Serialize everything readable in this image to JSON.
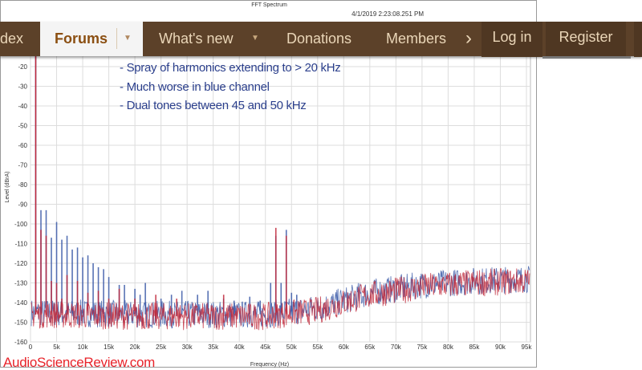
{
  "nav": {
    "items": [
      {
        "label": "dex"
      },
      {
        "label": "Forums"
      },
      {
        "label": "What's new"
      },
      {
        "label": "Donations"
      },
      {
        "label": "Members"
      }
    ],
    "more_icon": "chevron-right-icon",
    "dropdown_icon": "caret-down-icon",
    "login": "Log in",
    "register": "Register",
    "bg": "#5c4129",
    "active_color": "#8b4f12"
  },
  "post_image": {
    "title": "FFT Spectrum",
    "timestamp": "4/1/2019 2:23:08.251 PM",
    "notes": [
      "- Spray of harmonics extending to > 20 kHz",
      "- Much worse in blue channel",
      "- Dual tones between 45 and 50 kHz"
    ],
    "watermark": "AudioScienceReview.com"
  },
  "chart_data": {
    "type": "line",
    "title": "FFT Spectrum",
    "xlabel": "Frequency (Hz)",
    "ylabel": "Level (dBrA)",
    "xlim": [
      0,
      95000
    ],
    "ylim": [
      -160,
      -10
    ],
    "grid": true,
    "xticks": [
      "0",
      "5k",
      "10k",
      "15k",
      "20k",
      "25k",
      "30k",
      "35k",
      "40k",
      "45k",
      "50k",
      "55k",
      "60k",
      "65k",
      "70k",
      "75k",
      "80k",
      "85k",
      "90k",
      "95k"
    ],
    "yticks": [
      "-20",
      "-30",
      "-40",
      "-50",
      "-60",
      "-70",
      "-80",
      "-90",
      "-100",
      "-110",
      "-120",
      "-130",
      "-140",
      "-150",
      "-160"
    ],
    "series": [
      {
        "color": "#3b5aa8",
        "fundamental_hz": 1000,
        "harmonics_hz": [
          2000,
          3000,
          4000,
          5000,
          6000,
          7000,
          8000,
          9000,
          10000,
          11000,
          12000,
          13000,
          14000,
          15000,
          17000,
          18000,
          20000,
          21000,
          22000,
          25000,
          27000,
          29000,
          32000,
          34000,
          37000,
          39000,
          42000,
          44000,
          46000,
          47000,
          48000,
          49000,
          50000,
          51000
        ],
        "harmonics_db": [
          -93,
          -93,
          -107,
          -99,
          -108,
          -106,
          -113,
          -112,
          -117,
          -116,
          -120,
          -122,
          -123,
          -127,
          -131,
          -131,
          -133,
          -136,
          -130,
          -138,
          -136,
          -134,
          -136,
          -134,
          -138,
          -139,
          -137,
          -139,
          -130,
          -106,
          -130,
          -103,
          -135,
          -136
        ],
        "noise_floor_db": {
          "0": -145,
          "20000": -146,
          "45000": -146,
          "55000": -143,
          "65000": -135,
          "75000": -131,
          "85000": -129,
          "95000": -128
        }
      },
      {
        "color": "#c0283a",
        "fundamental_hz": 1000,
        "harmonics_hz": [
          2000,
          3000,
          4000,
          5000,
          6000,
          7000,
          9000,
          11000,
          13000,
          15000,
          17000,
          20000,
          24000,
          28000,
          37000,
          47000,
          49000
        ],
        "harmonics_db": [
          -103,
          -106,
          -129,
          -130,
          -138,
          -126,
          -129,
          -135,
          -134,
          -138,
          -133,
          -138,
          -136,
          -138,
          -136,
          -102,
          -106
        ],
        "noise_floor_db": {
          "0": -146,
          "20000": -147,
          "45000": -147,
          "55000": -144,
          "65000": -136,
          "75000": -132,
          "85000": -130,
          "95000": -129
        }
      }
    ]
  }
}
